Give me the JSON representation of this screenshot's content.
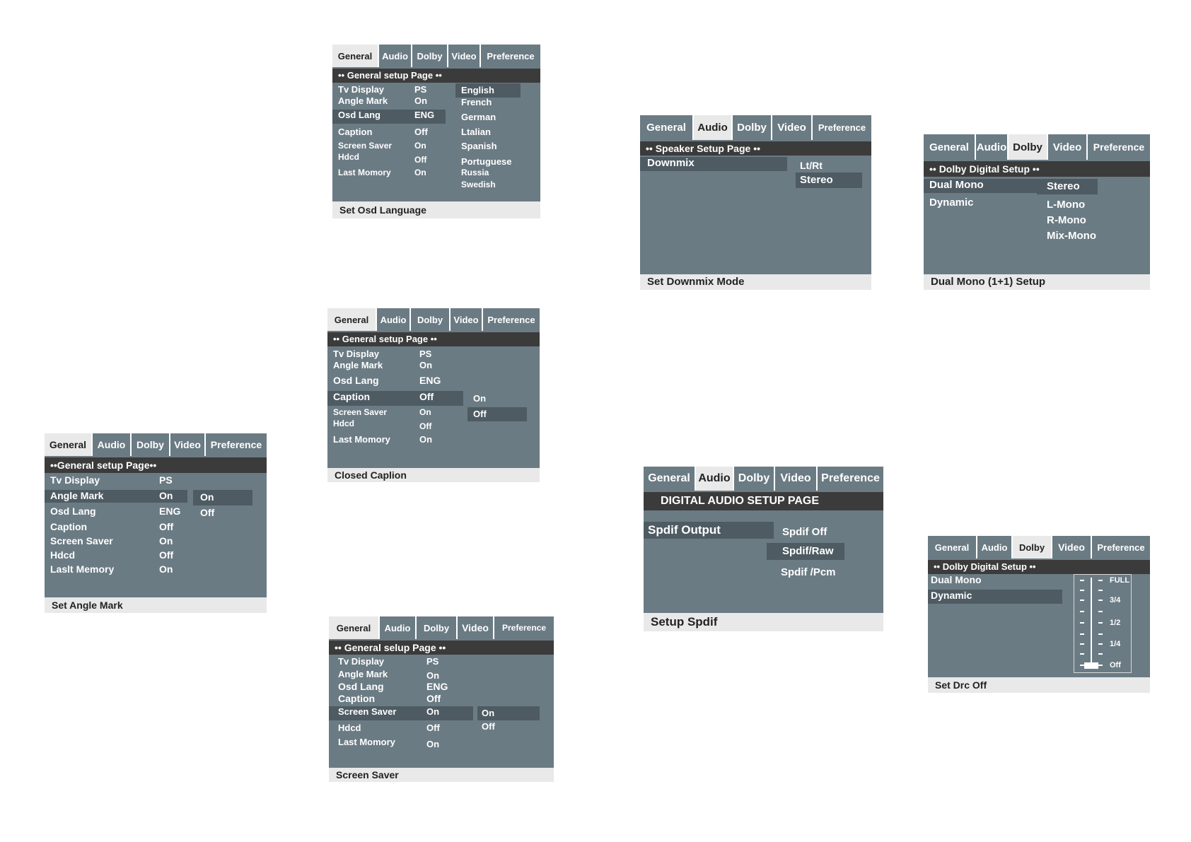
{
  "tabs": [
    "General",
    "Audio",
    "Dolby",
    "Video",
    "Preference"
  ],
  "general_header": "•• General setup Page ••",
  "general_rows": {
    "tv_display": {
      "label": "Tv Display",
      "value": "PS"
    },
    "angle_mark": {
      "label": "Angle Mark",
      "value": "On"
    },
    "osd_lang": {
      "label": "Osd Lang",
      "value": "ENG"
    },
    "caption": {
      "label": "Caption",
      "value": "Off"
    },
    "screen_saver": {
      "label": "Screen Saver",
      "value": "On"
    },
    "hdcd": {
      "label": "Hdcd",
      "value": "Off"
    },
    "last_memory": {
      "label": "Last Momory",
      "value": "On"
    }
  },
  "panel_angle": {
    "header": "••General setup Page••",
    "last_memory_label": "Laslt Memory",
    "options": [
      "On",
      "Off"
    ],
    "footer": "Set Angle Mark"
  },
  "panel_osd": {
    "languages": [
      "English",
      "French",
      "German",
      "Ltalian",
      "Spanish",
      "Portuguese",
      "Russia",
      "Swedish"
    ],
    "footer": "Set Osd Language"
  },
  "panel_caption": {
    "options": [
      "On",
      "Off"
    ],
    "footer": "Closed Caplion"
  },
  "panel_screensaver": {
    "header": "•• General selup Page ••",
    "options": [
      "On",
      "Off"
    ],
    "footer": "Screen Saver"
  },
  "panel_downmix": {
    "header": "•• Speaker Setup Page ••",
    "row_label": "Downmix",
    "options": [
      "Lt/Rt",
      "Stereo"
    ],
    "footer": "Set Downmix Mode"
  },
  "panel_spdif": {
    "header": "DIGITAL AUDIO SETUP PAGE",
    "row_label": "Spdif Output",
    "options": [
      "Spdif  Off",
      "Spdif/Raw",
      "Spdif /Pcm"
    ],
    "footer": "Setup Spdif"
  },
  "panel_dualmono": {
    "header": "•• Dolby Digital Setup ••",
    "rows": [
      "Dual Mono",
      "Dynamic"
    ],
    "options": [
      "Stereo",
      "L-Mono",
      "R-Mono",
      "Mix-Mono"
    ],
    "footer": "Dual Mono (1+1) Setup"
  },
  "panel_drc": {
    "header": "•• Dolby Digital Setup ••",
    "rows": [
      "Dual Mono",
      "Dynamic"
    ],
    "levels": [
      "FULL",
      "3/4",
      "1/2",
      "1/4",
      "Off"
    ],
    "footer": "Set Drc Off"
  },
  "colors": {
    "panel": "#6b7b84",
    "header": "#3b3b3b",
    "highlight": "#4e5b63",
    "footer": "#e9e9e9"
  }
}
